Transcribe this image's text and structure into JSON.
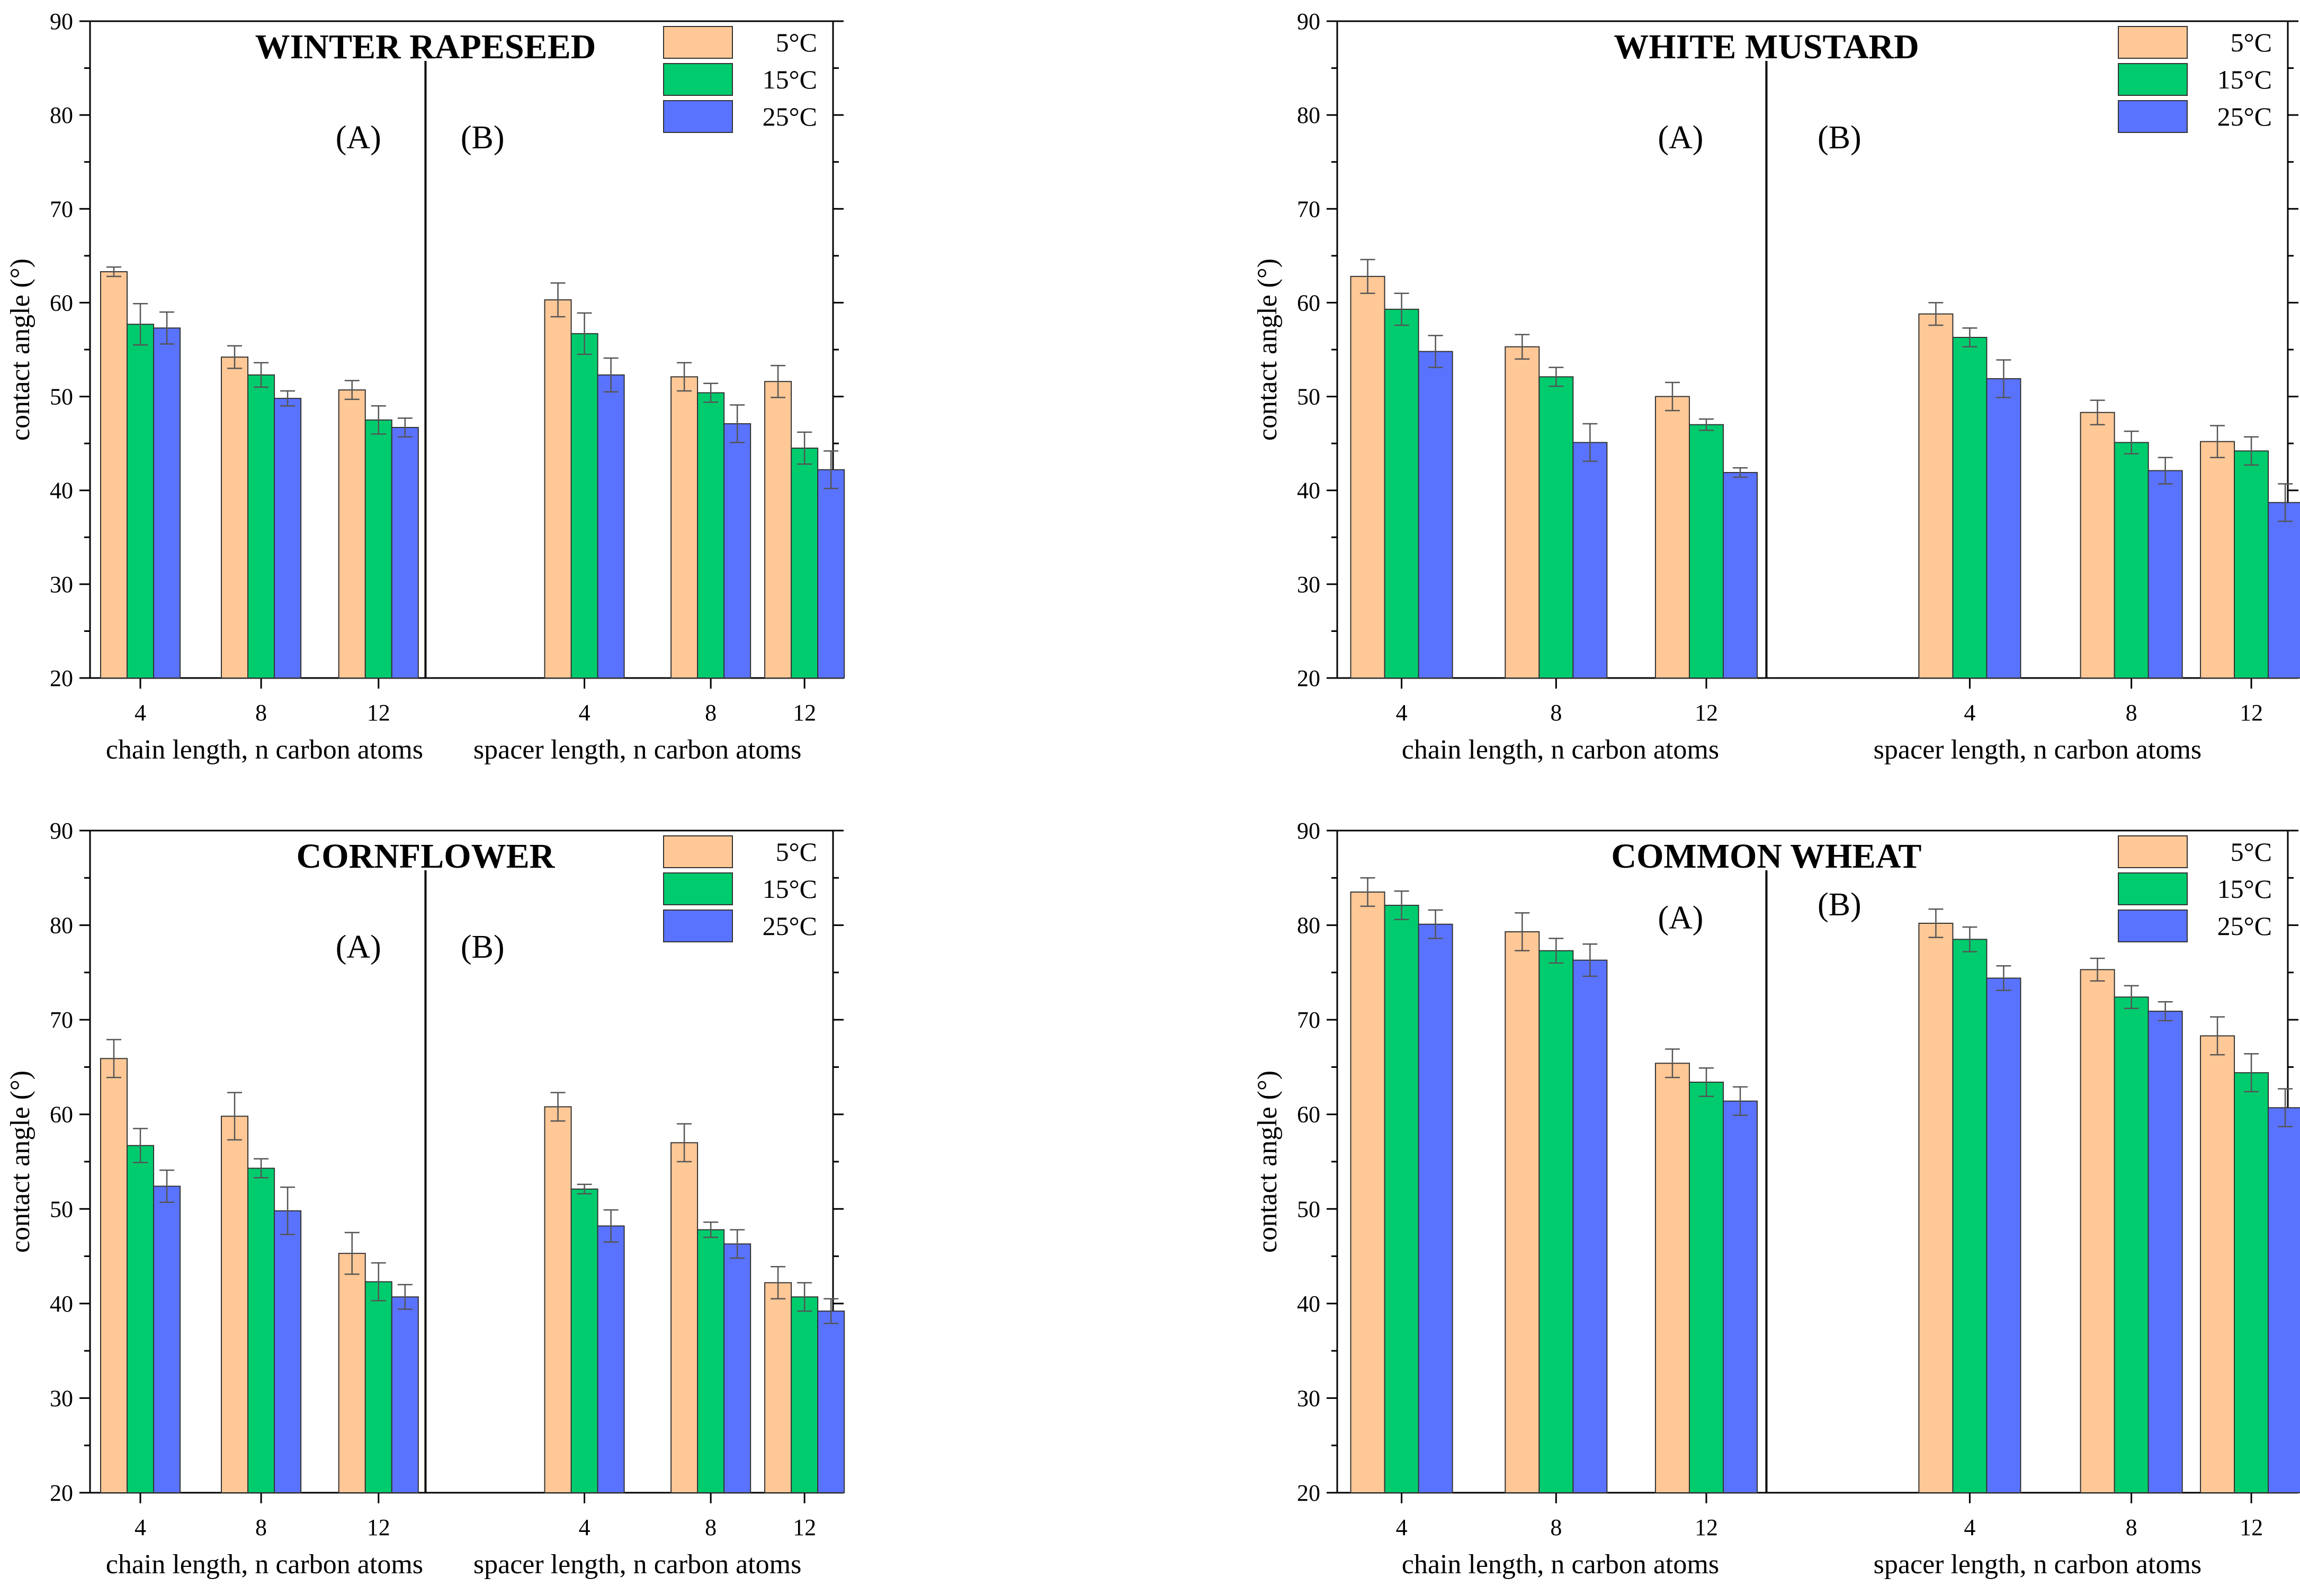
{
  "chart_data": [
    {
      "type": "bar",
      "title": "WINTER RAPESEED",
      "ylabel": "contact angle (°)",
      "ylim": [
        20,
        90
      ],
      "yticks": [
        "20",
        "30",
        "40",
        "50",
        "60",
        "70",
        "80",
        "90"
      ],
      "legend": {
        "placement": "top-right",
        "entries": [
          "5°C",
          "15°C",
          "25°C"
        ]
      },
      "series_colors": [
        "#FFC896",
        "#00CC6E",
        "#5A73FF"
      ],
      "groups": [
        {
          "label": "(A)",
          "xlabel": "chain length, n carbon atoms",
          "categories": [
            "4",
            "8",
            "12"
          ],
          "series": [
            {
              "name": "5°C",
              "values": [
                63.3,
                54.2,
                50.7
              ],
              "errors": [
                0.5,
                1.2,
                1.0
              ]
            },
            {
              "name": "15°C",
              "values": [
                57.7,
                52.3,
                47.5
              ],
              "errors": [
                2.2,
                1.3,
                1.5
              ]
            },
            {
              "name": "25°C",
              "values": [
                57.3,
                49.8,
                46.7
              ],
              "errors": [
                1.7,
                0.8,
                1.0
              ]
            }
          ]
        },
        {
          "label": "(B)",
          "xlabel": "spacer length, n carbon atoms",
          "categories": [
            "4",
            "8",
            "12"
          ],
          "series": [
            {
              "name": "5°C",
              "values": [
                60.3,
                52.1,
                51.6
              ],
              "errors": [
                1.8,
                1.5,
                1.7
              ]
            },
            {
              "name": "15°C",
              "values": [
                56.7,
                50.4,
                44.5
              ],
              "errors": [
                2.2,
                1.0,
                1.7
              ]
            },
            {
              "name": "25°C",
              "values": [
                52.3,
                47.1,
                42.2
              ],
              "errors": [
                1.8,
                2.0,
                2.0
              ]
            }
          ]
        }
      ]
    },
    {
      "type": "bar",
      "title": "WHITE MUSTARD",
      "ylabel": "contact angle (°)",
      "ylim": [
        20,
        90
      ],
      "yticks": [
        "20",
        "30",
        "40",
        "50",
        "60",
        "70",
        "80",
        "90"
      ],
      "legend": {
        "placement": "top-right",
        "entries": [
          "5°C",
          "15°C",
          "25°C"
        ]
      },
      "series_colors": [
        "#FFC896",
        "#00CC6E",
        "#5A73FF"
      ],
      "groups": [
        {
          "label": "(A)",
          "xlabel": "chain length, n carbon atoms",
          "categories": [
            "4",
            "8",
            "12"
          ],
          "series": [
            {
              "name": "5°C",
              "values": [
                62.8,
                55.3,
                50.0
              ],
              "errors": [
                1.8,
                1.3,
                1.5
              ]
            },
            {
              "name": "15°C",
              "values": [
                59.3,
                52.1,
                47.0
              ],
              "errors": [
                1.7,
                1.0,
                0.6
              ]
            },
            {
              "name": "25°C",
              "values": [
                54.8,
                45.1,
                41.9
              ],
              "errors": [
                1.7,
                2.0,
                0.5
              ]
            }
          ]
        },
        {
          "label": "(B)",
          "xlabel": "spacer length, n carbon atoms",
          "categories": [
            "4",
            "8",
            "12"
          ],
          "series": [
            {
              "name": "5°C",
              "values": [
                58.8,
                48.3,
                45.2
              ],
              "errors": [
                1.2,
                1.3,
                1.7
              ]
            },
            {
              "name": "15°C",
              "values": [
                56.3,
                45.1,
                44.2
              ],
              "errors": [
                1.0,
                1.2,
                1.5
              ]
            },
            {
              "name": "25°C",
              "values": [
                51.9,
                42.1,
                38.7
              ],
              "errors": [
                2.0,
                1.4,
                2.0
              ]
            }
          ]
        }
      ]
    },
    {
      "type": "bar",
      "title": "CORNFLOWER",
      "ylabel": "contact angle (°)",
      "ylim": [
        20,
        90
      ],
      "yticks": [
        "20",
        "30",
        "40",
        "50",
        "60",
        "70",
        "80",
        "90"
      ],
      "legend": {
        "placement": "top-right",
        "entries": [
          "5°C",
          "15°C",
          "25°C"
        ]
      },
      "series_colors": [
        "#FFC896",
        "#00CC6E",
        "#5A73FF"
      ],
      "groups": [
        {
          "label": "(A)",
          "xlabel": "chain length, n carbon atoms",
          "categories": [
            "4",
            "8",
            "12"
          ],
          "series": [
            {
              "name": "5°C",
              "values": [
                65.9,
                59.8,
                45.3
              ],
              "errors": [
                2.0,
                2.5,
                2.2
              ]
            },
            {
              "name": "15°C",
              "values": [
                56.7,
                54.3,
                42.3
              ],
              "errors": [
                1.8,
                1.0,
                2.0
              ]
            },
            {
              "name": "25°C",
              "values": [
                52.4,
                49.8,
                40.7
              ],
              "errors": [
                1.7,
                2.5,
                1.3
              ]
            }
          ]
        },
        {
          "label": "(B)",
          "xlabel": "spacer length, n carbon atoms",
          "categories": [
            "4",
            "8",
            "12"
          ],
          "series": [
            {
              "name": "5°C",
              "values": [
                60.8,
                57.0,
                42.2
              ],
              "errors": [
                1.5,
                2.0,
                1.7
              ]
            },
            {
              "name": "15°C",
              "values": [
                52.1,
                47.8,
                40.7
              ],
              "errors": [
                0.5,
                0.8,
                1.5
              ]
            },
            {
              "name": "25°C",
              "values": [
                48.2,
                46.3,
                39.2
              ],
              "errors": [
                1.7,
                1.5,
                1.3
              ]
            }
          ]
        }
      ]
    },
    {
      "type": "bar",
      "title": "COMMON WHEAT",
      "ylabel": "contact angle (°)",
      "ylim": [
        20,
        90
      ],
      "yticks": [
        "20",
        "30",
        "40",
        "50",
        "60",
        "70",
        "80",
        "90"
      ],
      "legend": {
        "placement": "top-right",
        "entries": [
          "5°C",
          "15°C",
          "25°C"
        ]
      },
      "series_colors": [
        "#FFC896",
        "#00CC6E",
        "#5A73FF"
      ],
      "groups": [
        {
          "label": "(A)",
          "xlabel": "chain length, n carbon atoms",
          "categories": [
            "4",
            "8",
            "12"
          ],
          "series": [
            {
              "name": "5°C",
              "values": [
                83.5,
                79.3,
                65.4
              ],
              "errors": [
                1.5,
                2.0,
                1.5
              ]
            },
            {
              "name": "15°C",
              "values": [
                82.1,
                77.3,
                63.4
              ],
              "errors": [
                1.5,
                1.3,
                1.5
              ]
            },
            {
              "name": "25°C",
              "values": [
                80.1,
                76.3,
                61.4
              ],
              "errors": [
                1.5,
                1.7,
                1.5
              ]
            }
          ]
        },
        {
          "label": "(B)",
          "xlabel": "spacer length, n carbon atoms",
          "categories": [
            "4",
            "8",
            "12"
          ],
          "series": [
            {
              "name": "5°C",
              "values": [
                80.2,
                75.3,
                68.3
              ],
              "errors": [
                1.5,
                1.2,
                2.0
              ]
            },
            {
              "name": "15°C",
              "values": [
                78.5,
                72.4,
                64.4
              ],
              "errors": [
                1.3,
                1.2,
                2.0
              ]
            },
            {
              "name": "25°C",
              "values": [
                74.4,
                70.9,
                60.7
              ],
              "errors": [
                1.3,
                1.0,
                2.0
              ]
            }
          ]
        }
      ]
    }
  ]
}
